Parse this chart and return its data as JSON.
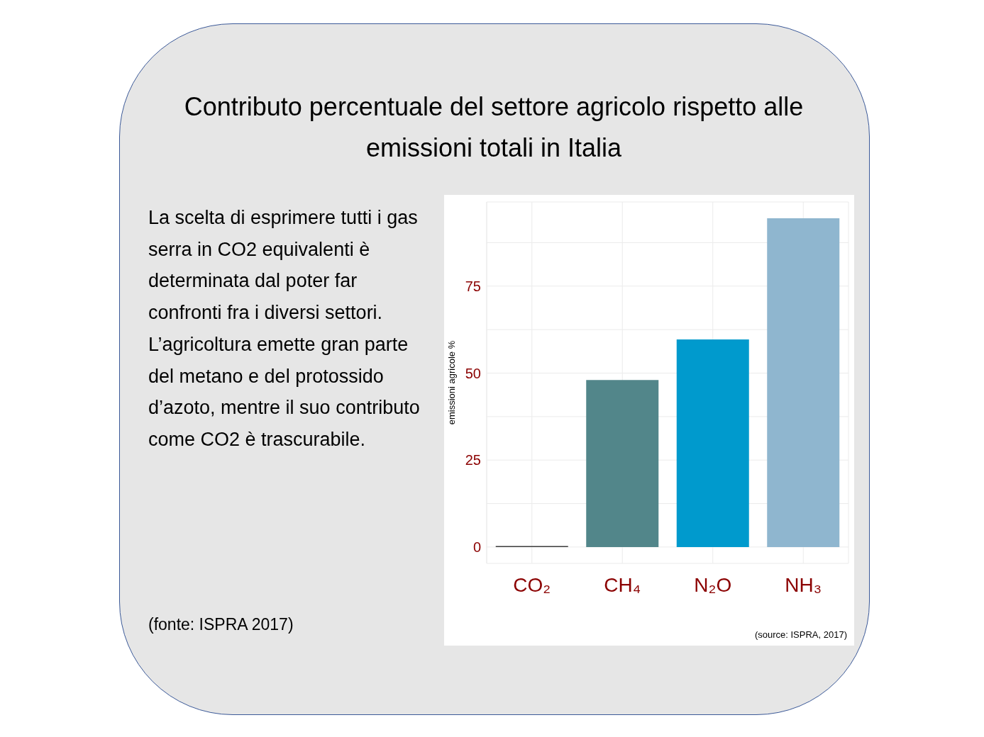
{
  "chart_data": {
    "type": "bar",
    "title": "Contributo percentuale del settore agricolo rispetto alle emissioni totali in Italia",
    "categories": [
      "CO₂",
      "CH₄",
      "N₂O",
      "NH₃"
    ],
    "values": [
      0.3,
      48,
      59.7,
      94.5
    ],
    "colors": [
      "#3d3d3d",
      "#52868a",
      "#009acd",
      "#8fb6cf"
    ],
    "ylabel": "emissioni agricole %",
    "ylim": [
      -4.7,
      99.2
    ],
    "yticks": [
      0,
      {
        "value": 12.5,
        "label": null
      },
      25,
      {
        "value": 37.5,
        "label": null
      },
      50,
      {
        "value": 62.5,
        "label": null
      },
      75,
      {
        "value": 87.5,
        "label": null
      }
    ],
    "grid": true,
    "annotations": [
      "La scelta di esprimere tutti i gas serra in CO2 equivalenti è determinata dal poter far confronti fra i diversi settori.",
      "L’agricoltura emette gran parte del metano e del protossido d’azoto, mentre il suo contributo come CO2 è trascurabile.",
      "(fonte: ISPRA 2017)",
      "(source: ISPRA, 2017)"
    ]
  }
}
